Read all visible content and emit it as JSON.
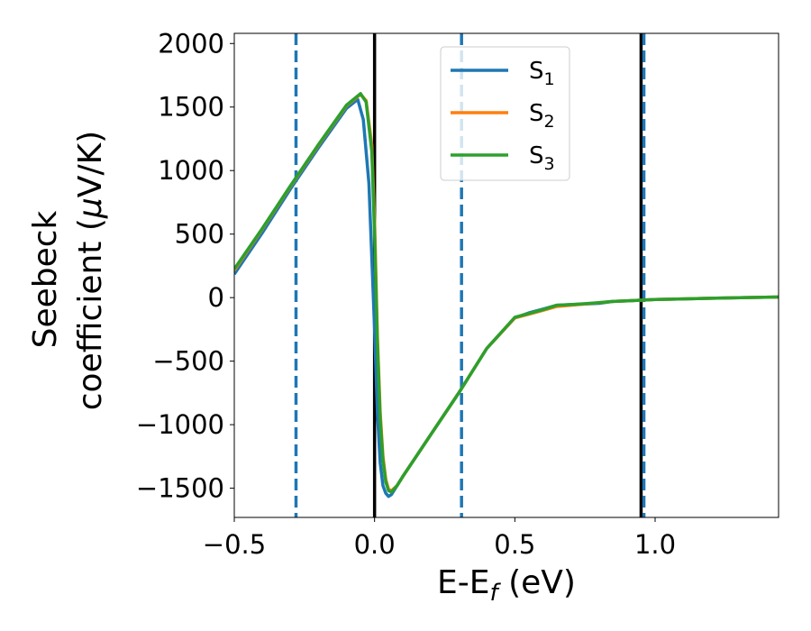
{
  "chart_data": {
    "type": "line",
    "title": "",
    "xlabel": "E-E",
    "xlabel_sub": "f",
    "xlabel_unit": " (eV)",
    "ylabel_line1": "Seebeck",
    "ylabel_line2": "coefficient  (",
    "ylabel_mu": "μ",
    "ylabel_unit": "V/K)",
    "xlim": [
      -0.5,
      1.44
    ],
    "ylim": [
      -1730,
      2080
    ],
    "xticks": [
      -0.5,
      0.0,
      0.5,
      1.0
    ],
    "xtick_labels": [
      "−0.5",
      "0.0",
      "0.5",
      "1.0"
    ],
    "yticks": [
      -1500,
      -1000,
      -500,
      0,
      500,
      1000,
      1500,
      2000
    ],
    "ytick_labels": [
      "−1500",
      "−1000",
      "−500",
      "0",
      "500",
      "1000",
      "1500",
      "2000"
    ],
    "vlines_solid": [
      0.0,
      0.95
    ],
    "vlines_dashed": [
      -0.28,
      0.31,
      0.96
    ],
    "vline_solid_color": "#000000",
    "vline_dashed_color": "#1f77b4",
    "legend_position": "upper-center",
    "series": [
      {
        "name": "S",
        "sub": "1",
        "color": "#1f77b4",
        "x": [
          -0.5,
          -0.4,
          -0.3,
          -0.2,
          -0.1,
          -0.06,
          -0.04,
          -0.02,
          0.0,
          0.01,
          0.02,
          0.03,
          0.04,
          0.05,
          0.06,
          0.08,
          0.1,
          0.2,
          0.3,
          0.4,
          0.5,
          0.55,
          0.6,
          0.65,
          0.7,
          0.75,
          0.8,
          0.85,
          0.9,
          0.95,
          1.0,
          1.1,
          1.2,
          1.3,
          1.44
        ],
        "values": [
          185,
          510,
          855,
          1180,
          1490,
          1560,
          1400,
          900,
          -250,
          -900,
          -1300,
          -1480,
          -1540,
          -1565,
          -1550,
          -1480,
          -1410,
          -1080,
          -750,
          -400,
          -160,
          -120,
          -90,
          -60,
          -55,
          -50,
          -45,
          -30,
          -25,
          -20,
          -15,
          -10,
          -5,
          0,
          5
        ]
      },
      {
        "name": "S",
        "sub": "2",
        "color": "#ff7f0e",
        "x": [
          -0.5,
          -0.4,
          -0.3,
          -0.2,
          -0.1,
          -0.05,
          -0.03,
          -0.01,
          0.0,
          0.01,
          0.02,
          0.03,
          0.04,
          0.05,
          0.06,
          0.08,
          0.1,
          0.2,
          0.3,
          0.4,
          0.5,
          0.55,
          0.6,
          0.65,
          0.7,
          0.75,
          0.8,
          0.85,
          0.9,
          0.95,
          1.0,
          1.1,
          1.2,
          1.3,
          1.44
        ],
        "values": [
          215,
          540,
          875,
          1200,
          1510,
          1600,
          1550,
          1200,
          600,
          -300,
          -900,
          -1250,
          -1430,
          -1510,
          -1520,
          -1480,
          -1410,
          -1080,
          -750,
          -400,
          -160,
          -130,
          -100,
          -70,
          -60,
          -50,
          -40,
          -30,
          -25,
          -20,
          -15,
          -10,
          -5,
          0,
          5
        ]
      },
      {
        "name": "S",
        "sub": "3",
        "color": "#2ca02c",
        "x": [
          -0.5,
          -0.4,
          -0.3,
          -0.2,
          -0.1,
          -0.05,
          -0.03,
          -0.01,
          0.0,
          0.01,
          0.02,
          0.03,
          0.04,
          0.05,
          0.06,
          0.08,
          0.1,
          0.2,
          0.3,
          0.4,
          0.5,
          0.55,
          0.6,
          0.65,
          0.7,
          0.75,
          0.8,
          0.85,
          0.9,
          0.95,
          1.0,
          1.1,
          1.2,
          1.3,
          1.44
        ],
        "values": [
          225,
          545,
          880,
          1205,
          1515,
          1605,
          1540,
          1150,
          500,
          -350,
          -950,
          -1280,
          -1450,
          -1520,
          -1530,
          -1480,
          -1410,
          -1080,
          -750,
          -400,
          -155,
          -125,
          -95,
          -60,
          -55,
          -48,
          -40,
          -30,
          -25,
          -20,
          -15,
          -10,
          -5,
          0,
          5
        ]
      }
    ]
  }
}
